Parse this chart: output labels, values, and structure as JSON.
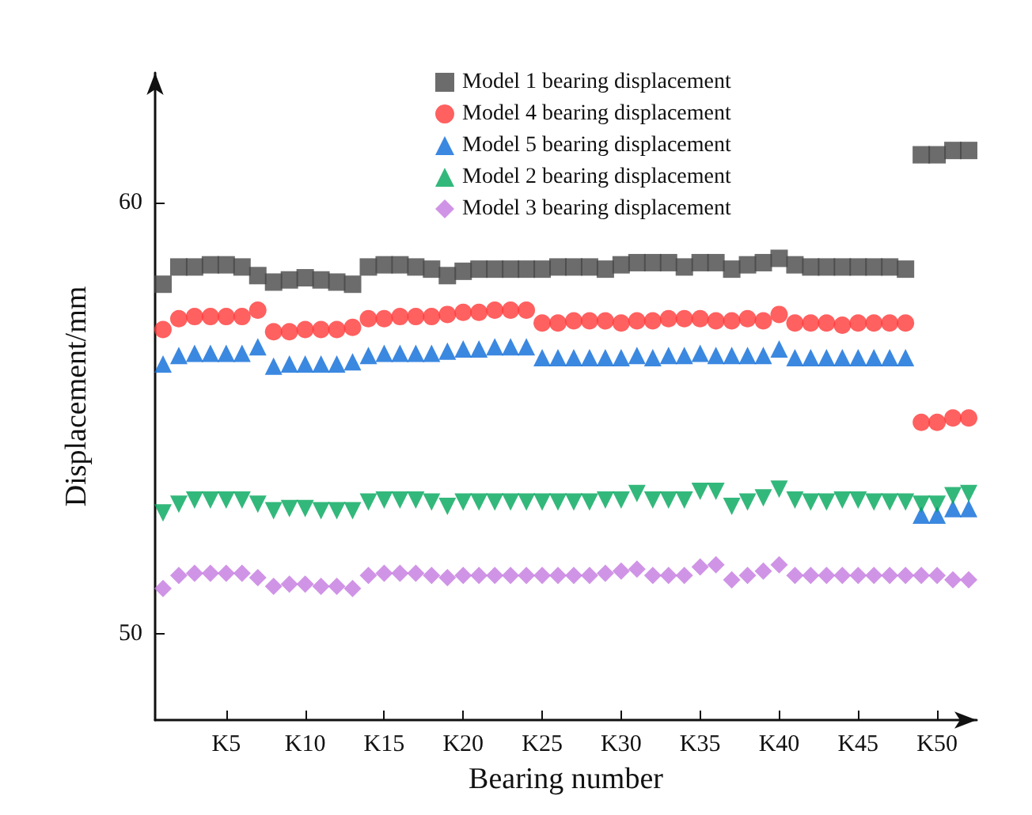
{
  "chart_data": {
    "type": "scatter",
    "xlabel": "Bearing number",
    "ylabel": "Displacement/mm",
    "categories": [
      null,
      null,
      null,
      null,
      "K5",
      null,
      null,
      null,
      null,
      "K10",
      null,
      null,
      null,
      null,
      "K15",
      null,
      null,
      null,
      null,
      "K20",
      null,
      null,
      null,
      null,
      "K25",
      null,
      null,
      null,
      null,
      "K30",
      null,
      null,
      null,
      null,
      "K35",
      null,
      null,
      null,
      null,
      "K40",
      null,
      null,
      null,
      null,
      "K45",
      null,
      null,
      null,
      null,
      "K50",
      null,
      null
    ],
    "series": [
      {
        "name": "Model 1 bearing displacement",
        "color": "#474747",
        "marker": "square",
        "values": [
          58.1,
          58.5,
          58.5,
          58.55,
          58.55,
          58.5,
          58.3,
          58.15,
          58.2,
          58.25,
          58.2,
          58.15,
          58.1,
          58.5,
          58.55,
          58.55,
          58.5,
          58.45,
          58.3,
          58.4,
          58.45,
          58.45,
          58.45,
          58.45,
          58.45,
          58.5,
          58.5,
          58.5,
          58.45,
          58.55,
          58.6,
          58.6,
          58.6,
          58.5,
          58.6,
          58.6,
          58.45,
          58.55,
          58.6,
          58.7,
          58.55,
          58.5,
          58.5,
          58.5,
          58.5,
          58.5,
          58.5,
          58.45,
          61.1,
          61.1,
          61.2,
          61.2
        ]
      },
      {
        "name": "Model 4 bearing displacement",
        "color": "#ff3838",
        "marker": "circle",
        "values": [
          57.05,
          57.3,
          57.35,
          57.35,
          57.35,
          57.35,
          57.5,
          57.0,
          57.0,
          57.05,
          57.05,
          57.05,
          57.1,
          57.3,
          57.3,
          57.35,
          57.35,
          57.35,
          57.4,
          57.45,
          57.45,
          57.5,
          57.5,
          57.5,
          57.2,
          57.2,
          57.25,
          57.25,
          57.25,
          57.2,
          57.25,
          57.25,
          57.3,
          57.3,
          57.3,
          57.25,
          57.25,
          57.3,
          57.25,
          57.4,
          57.2,
          57.2,
          57.2,
          57.15,
          57.2,
          57.2,
          57.2,
          57.2,
          54.9,
          54.9,
          55.0,
          55.0
        ]
      },
      {
        "name": "Model 5 bearing displacement",
        "color": "#0a6ad8",
        "marker": "triangle",
        "values": [
          56.25,
          56.45,
          56.5,
          56.5,
          56.5,
          56.5,
          56.65,
          56.2,
          56.25,
          56.25,
          56.25,
          56.25,
          56.3,
          56.45,
          56.5,
          56.5,
          56.5,
          56.5,
          56.55,
          56.6,
          56.6,
          56.65,
          56.65,
          56.65,
          56.4,
          56.4,
          56.4,
          56.4,
          56.4,
          56.4,
          56.45,
          56.4,
          56.45,
          56.45,
          56.5,
          56.45,
          56.45,
          56.45,
          56.45,
          56.6,
          56.4,
          56.4,
          56.4,
          56.4,
          56.4,
          56.4,
          56.4,
          56.4,
          52.75,
          52.75,
          52.9,
          52.9
        ]
      },
      {
        "name": "Model 2 bearing displacement",
        "color": "#00a65a",
        "marker": "triangle-down",
        "values": [
          52.8,
          53.0,
          53.1,
          53.1,
          53.1,
          53.1,
          53.0,
          52.85,
          52.9,
          52.9,
          52.85,
          52.85,
          52.85,
          53.05,
          53.1,
          53.1,
          53.1,
          53.05,
          52.95,
          53.05,
          53.05,
          53.05,
          53.05,
          53.05,
          53.05,
          53.05,
          53.05,
          53.05,
          53.1,
          53.1,
          53.25,
          53.1,
          53.1,
          53.1,
          53.3,
          53.3,
          52.95,
          53.05,
          53.15,
          53.35,
          53.1,
          53.05,
          53.05,
          53.1,
          53.1,
          53.05,
          53.05,
          53.05,
          53.0,
          53.0,
          53.2,
          53.25
        ]
      },
      {
        "name": "Model 3 bearing displacement",
        "color": "#c479e0",
        "marker": "diamond",
        "values": [
          51.05,
          51.35,
          51.4,
          51.4,
          51.4,
          51.4,
          51.3,
          51.1,
          51.15,
          51.15,
          51.1,
          51.1,
          51.05,
          51.35,
          51.4,
          51.4,
          51.4,
          51.35,
          51.3,
          51.35,
          51.35,
          51.35,
          51.35,
          51.35,
          51.35,
          51.35,
          51.35,
          51.35,
          51.4,
          51.45,
          51.5,
          51.35,
          51.35,
          51.35,
          51.55,
          51.6,
          51.25,
          51.35,
          51.45,
          51.6,
          51.35,
          51.35,
          51.35,
          51.35,
          51.35,
          51.35,
          51.35,
          51.35,
          51.35,
          51.35,
          51.25,
          51.25
        ]
      }
    ],
    "ylim": [
      48,
      63
    ],
    "yticks": [
      50,
      60
    ],
    "grid": false,
    "legend": "top"
  }
}
